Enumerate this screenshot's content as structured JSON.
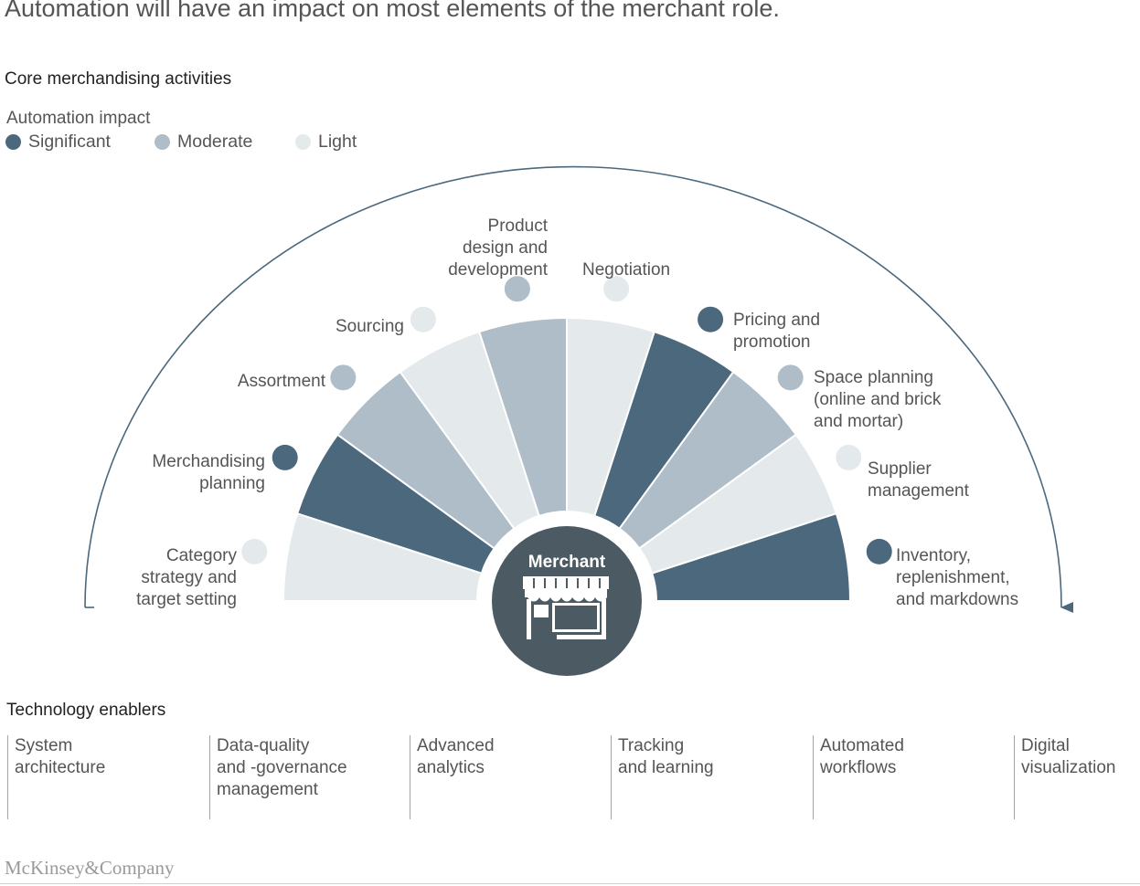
{
  "title": "Automation will have an impact on most elements of the merchant role.",
  "core_heading": "Core merchandising activities",
  "legend": {
    "title": "Automation impact",
    "items": [
      {
        "label": "Significant",
        "color": "#4b687d"
      },
      {
        "label": "Moderate",
        "color": "#aebdc8"
      },
      {
        "label": "Light",
        "color": "#e4e9ec"
      }
    ]
  },
  "hub": {
    "label": "Merchant",
    "icon": "store-icon"
  },
  "activities": [
    {
      "lines": [
        "Category",
        "strategy and",
        "target setting"
      ],
      "impact": "Light"
    },
    {
      "lines": [
        "Merchandising",
        "planning"
      ],
      "impact": "Significant"
    },
    {
      "lines": [
        "Assortment"
      ],
      "impact": "Moderate"
    },
    {
      "lines": [
        "Sourcing"
      ],
      "impact": "Light"
    },
    {
      "lines": [
        "Product",
        "design and",
        "development"
      ],
      "impact": "Moderate"
    },
    {
      "lines": [
        "Negotiation"
      ],
      "impact": "Light"
    },
    {
      "lines": [
        "Pricing and",
        "promotion"
      ],
      "impact": "Significant"
    },
    {
      "lines": [
        "Space planning",
        "(online and brick",
        "and mortar)"
      ],
      "impact": "Moderate"
    },
    {
      "lines": [
        "Supplier",
        "management"
      ],
      "impact": "Light"
    },
    {
      "lines": [
        "Inventory,",
        "replenishment,",
        "and markdowns"
      ],
      "impact": "Significant"
    }
  ],
  "tech_heading": "Technology enablers",
  "enablers": [
    {
      "lines": [
        "System",
        "architecture"
      ]
    },
    {
      "lines": [
        "Data-quality",
        "and -governance",
        "management"
      ]
    },
    {
      "lines": [
        "Advanced",
        "analytics"
      ]
    },
    {
      "lines": [
        "Tracking",
        "and learning"
      ]
    },
    {
      "lines": [
        "Automated",
        "workflows"
      ]
    },
    {
      "lines": [
        "Digital",
        "visualization"
      ]
    }
  ],
  "footer": "McKinsey&Company",
  "colors": {
    "arc": "#4b687d",
    "hub": "#4b5a63",
    "Significant": "#4b687d",
    "Moderate": "#aebdc8",
    "Light": "#e4e9ec"
  }
}
